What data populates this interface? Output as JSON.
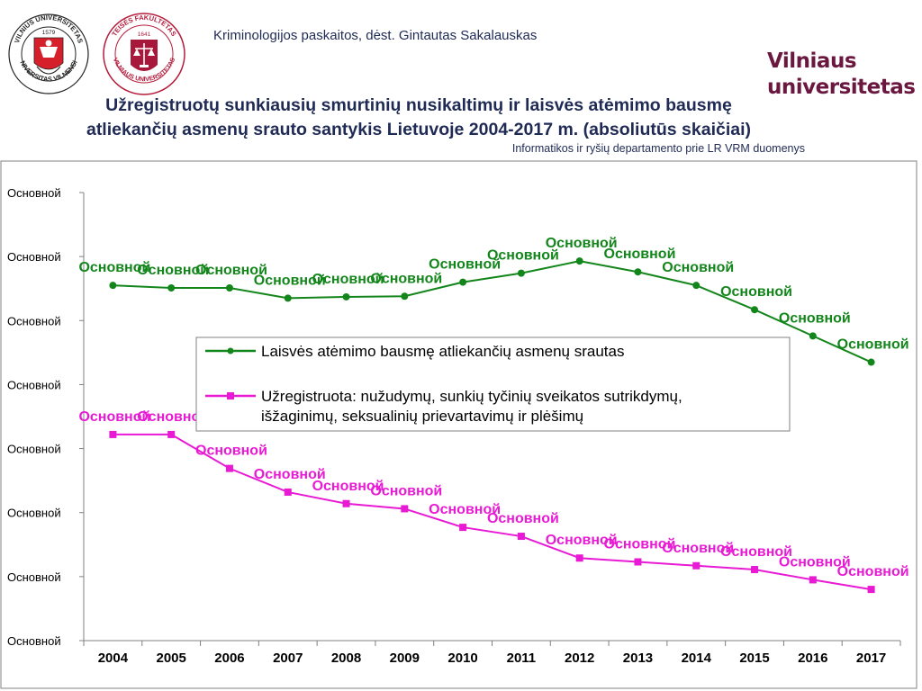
{
  "header": {
    "course": "Kriminologijos paskaitos, dėst. Gintautas Sakalauskas",
    "university_line1": "Vilniaus",
    "university_line2": "universitetas",
    "logo_left_text_top": "VILNIUS UNIVERSITETAS",
    "logo_left_text_bottom": "UNIVERSITAS VILNENSIS",
    "logo_left_year": "1579",
    "logo_right_text_top": "TEISĖS FAKULTETAS",
    "logo_right_text_bottom": "VILNIAUS UNIVERSITETAS",
    "logo_right_year": "1641"
  },
  "chart_data": {
    "type": "line",
    "title": "Užregistruotų sunkiausių smurtinių nusikaltimų ir laisvės atėmimo bausmę atliekančių asmenų srauto santykis Lietuvoje 2004-2017 m. (absoliutūs skaičiai)",
    "title_line1": "Užregistruotų sunkiausių smurtinių nusikaltimų ir laisvės atėmimo bausmę",
    "title_line2": "atliekančių asmenų srauto santykis Lietuvoje 2004-2017 m. (absoliutūs skaičiai)",
    "subtitle": "Informatikos ir ryšių departamento prie LR VRM  duomenys",
    "x": [
      "2004",
      "2005",
      "2006",
      "2007",
      "2008",
      "2009",
      "2010",
      "2011",
      "2012",
      "2013",
      "2014",
      "2015",
      "2016",
      "2017"
    ],
    "y_tick_labels": [
      "Основной",
      "Основной",
      "Основной",
      "Основной",
      "Основной",
      "Основной",
      "Основной",
      "Основной"
    ],
    "ylim": [
      0,
      7
    ],
    "grid": false,
    "legend_position": "center",
    "series": [
      {
        "name": "Laisvės atėmimo bausmę atliekančių asmenų srautas",
        "color": "#13861b",
        "marker": "circle",
        "values": [
          5.55,
          5.51,
          5.51,
          5.35,
          5.37,
          5.38,
          5.6,
          5.74,
          5.93,
          5.76,
          5.55,
          5.17,
          4.76,
          4.35
        ],
        "labels": [
          "Основной",
          "Основной",
          "Основной",
          "Основной",
          "Основной",
          "Основной",
          "Основной",
          "Основной",
          "Основной",
          "Основной",
          "Основной",
          "Основной",
          "Основной",
          "Основной"
        ]
      },
      {
        "name": "Užregistruota: nužudymų, sunkių tyčinių sveikatos sutrikdymų, išžaginimų, seksualinių prievartavimų ir plėšimų",
        "name_line1": "Užregistruota: nužudymų, sunkių tyčinių sveikatos sutrikdymų,",
        "name_line2": "išžaginimų, seksualinių prievartavimų ir plėšimų",
        "color": "#e81ad4",
        "marker": "square",
        "values": [
          3.22,
          3.22,
          2.69,
          2.32,
          2.14,
          2.06,
          1.77,
          1.63,
          1.29,
          1.23,
          1.17,
          1.11,
          0.95,
          0.8
        ],
        "labels": [
          "Основной",
          "Основной",
          "Основной",
          "Основной",
          "Основной",
          "Основной",
          "Основной",
          "Основной",
          "Основной",
          "Основной",
          "Основной",
          "Основной",
          "Основной",
          "Основной"
        ]
      }
    ]
  }
}
